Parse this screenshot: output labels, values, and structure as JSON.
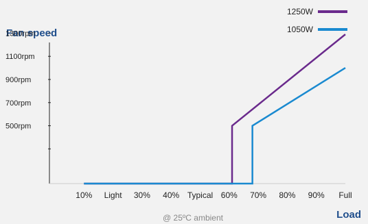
{
  "chart_data": {
    "type": "line",
    "ylabel": "Fan speed",
    "xlabel": "Load",
    "footnote": "@ 25ºC ambient",
    "categories": [
      "10%",
      "Light",
      "30%",
      "40%",
      "Typical",
      "60%",
      "70%",
      "80%",
      "90%",
      "Full"
    ],
    "y_ticks": [
      {
        "value": 500,
        "label": "500rpm"
      },
      {
        "value": 700,
        "label": "700rpm"
      },
      {
        "value": 900,
        "label": "900rpm"
      },
      {
        "value": 1100,
        "label": "1100rpm"
      },
      {
        "value": 1300,
        "label": "1300rpm"
      }
    ],
    "ylim": [
      0,
      1350
    ],
    "xlim": [
      0,
      100
    ],
    "grid": false,
    "legend_position": "top-right",
    "series": [
      {
        "name": "1250W",
        "color": "#6a2a8c",
        "points": [
          [
            10,
            0
          ],
          [
            61,
            0
          ],
          [
            61,
            500
          ],
          [
            100,
            1290
          ]
        ]
      },
      {
        "name": "1050W",
        "color": "#1a8ad0",
        "points": [
          [
            10,
            0
          ],
          [
            68,
            0
          ],
          [
            68,
            500
          ],
          [
            100,
            1000
          ]
        ]
      }
    ]
  }
}
